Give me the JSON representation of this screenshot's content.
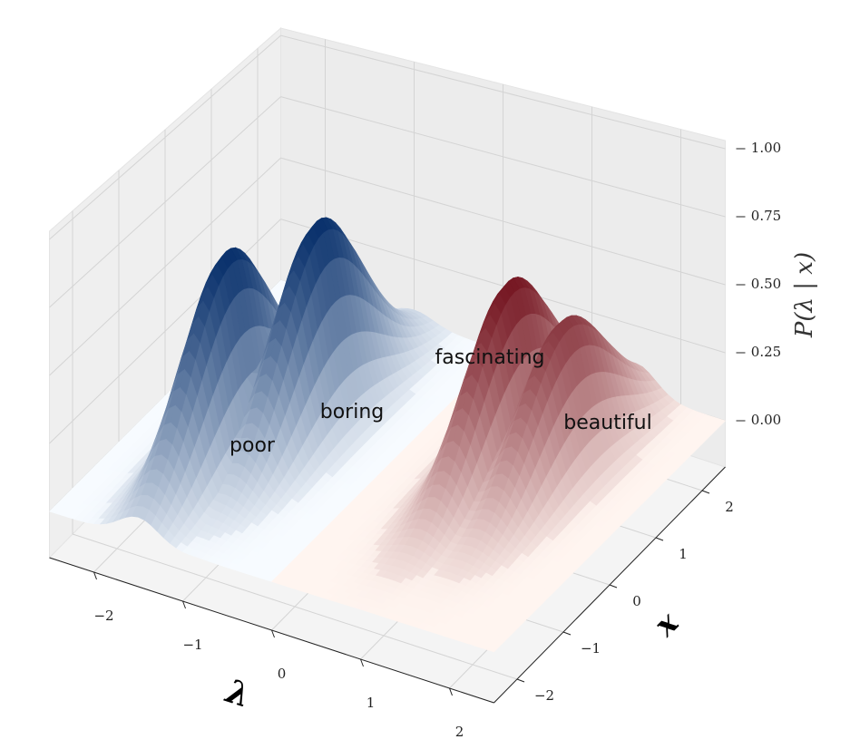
{
  "chart_data": {
    "type": "surface3d",
    "xlabel": "λ",
    "ylabel": "x",
    "zlabel": "P(λ | x)",
    "xlim": [
      -2.5,
      2.5
    ],
    "xticks": [
      {
        "value": -2,
        "label": "−2"
      },
      {
        "value": -1,
        "label": "−1"
      },
      0,
      1,
      2
    ],
    "ylim": [
      -2.5,
      2.5
    ],
    "yticks": [
      {
        "value": -2,
        "label": "−2"
      },
      {
        "value": -1,
        "label": "−1"
      },
      0,
      1,
      2
    ],
    "zlim": [
      -0.17,
      1.03
    ],
    "zticks": [
      {
        "value": 0,
        "label": "0.00"
      },
      {
        "value": 0.25,
        "label": "0.25"
      },
      {
        "value": 0.5,
        "label": "0.50"
      },
      {
        "value": 0.75,
        "label": "0.75"
      },
      {
        "value": 1,
        "label": "1.00"
      }
    ],
    "grid": true,
    "peaks": [
      {
        "label": "poor",
        "lambda": -1.5,
        "x": -0.6,
        "z": 0.75,
        "color": "#08306b"
      },
      {
        "label": "boring",
        "lambda": -1.0,
        "x": 0.4,
        "z": 0.75,
        "color": "#08306b"
      },
      {
        "label": "fascinating",
        "lambda": 1.0,
        "x": 0.7,
        "z": 0.66,
        "color": "#67000d"
      },
      {
        "label": "beautiful",
        "lambda": 1.5,
        "x": 0.9,
        "z": 0.53,
        "color": "#67000d"
      }
    ]
  }
}
